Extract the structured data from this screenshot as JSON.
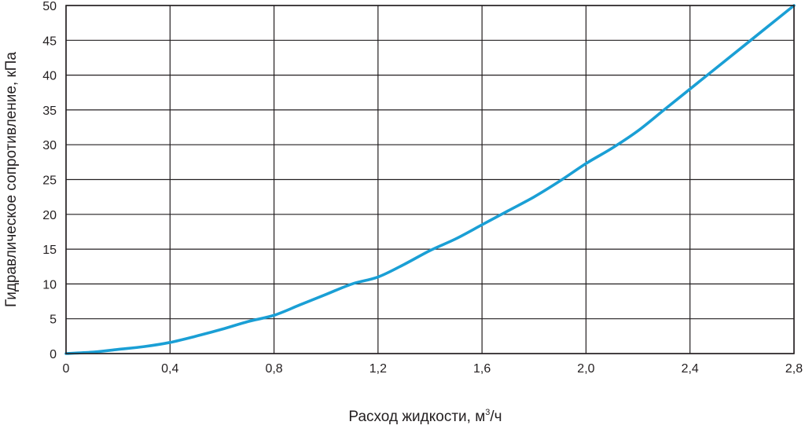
{
  "chart_data": {
    "type": "line",
    "title": "",
    "xlabel": "Расход жидкости, м",
    "xlabel_sup": "3",
    "xlabel_tail": "/ч",
    "ylabel": "Гидравлическое сопротивление, кПа",
    "xlim": [
      0,
      2.8
    ],
    "ylim": [
      0,
      50
    ],
    "x_ticks": [
      "0",
      "0,4",
      "0,8",
      "1,2",
      "1,6",
      "2,0",
      "2,4",
      "2,8"
    ],
    "y_ticks": [
      "0",
      "5",
      "10",
      "15",
      "20",
      "25",
      "30",
      "35",
      "40",
      "45",
      "50"
    ],
    "grid": true,
    "series": [
      {
        "x": [
          0,
          0.1,
          0.2,
          0.3,
          0.4,
          0.5,
          0.6,
          0.7,
          0.8,
          0.9,
          1.0,
          1.1,
          1.2,
          1.3,
          1.4,
          1.5,
          1.6,
          1.7,
          1.8,
          1.9,
          2.0,
          2.1,
          2.2,
          2.3,
          2.4,
          2.5,
          2.6,
          2.7,
          2.8
        ],
        "y": [
          0,
          0.2,
          0.6,
          1.0,
          1.6,
          2.5,
          3.5,
          4.6,
          5.5,
          7.0,
          8.5,
          10.0,
          11.0,
          12.8,
          14.8,
          16.5,
          18.5,
          20.5,
          22.5,
          24.8,
          27.3,
          29.5,
          32.0,
          35.0,
          38.0,
          41.0,
          44.0,
          47.0,
          50.0
        ],
        "color": "#1a9fd5"
      }
    ]
  }
}
